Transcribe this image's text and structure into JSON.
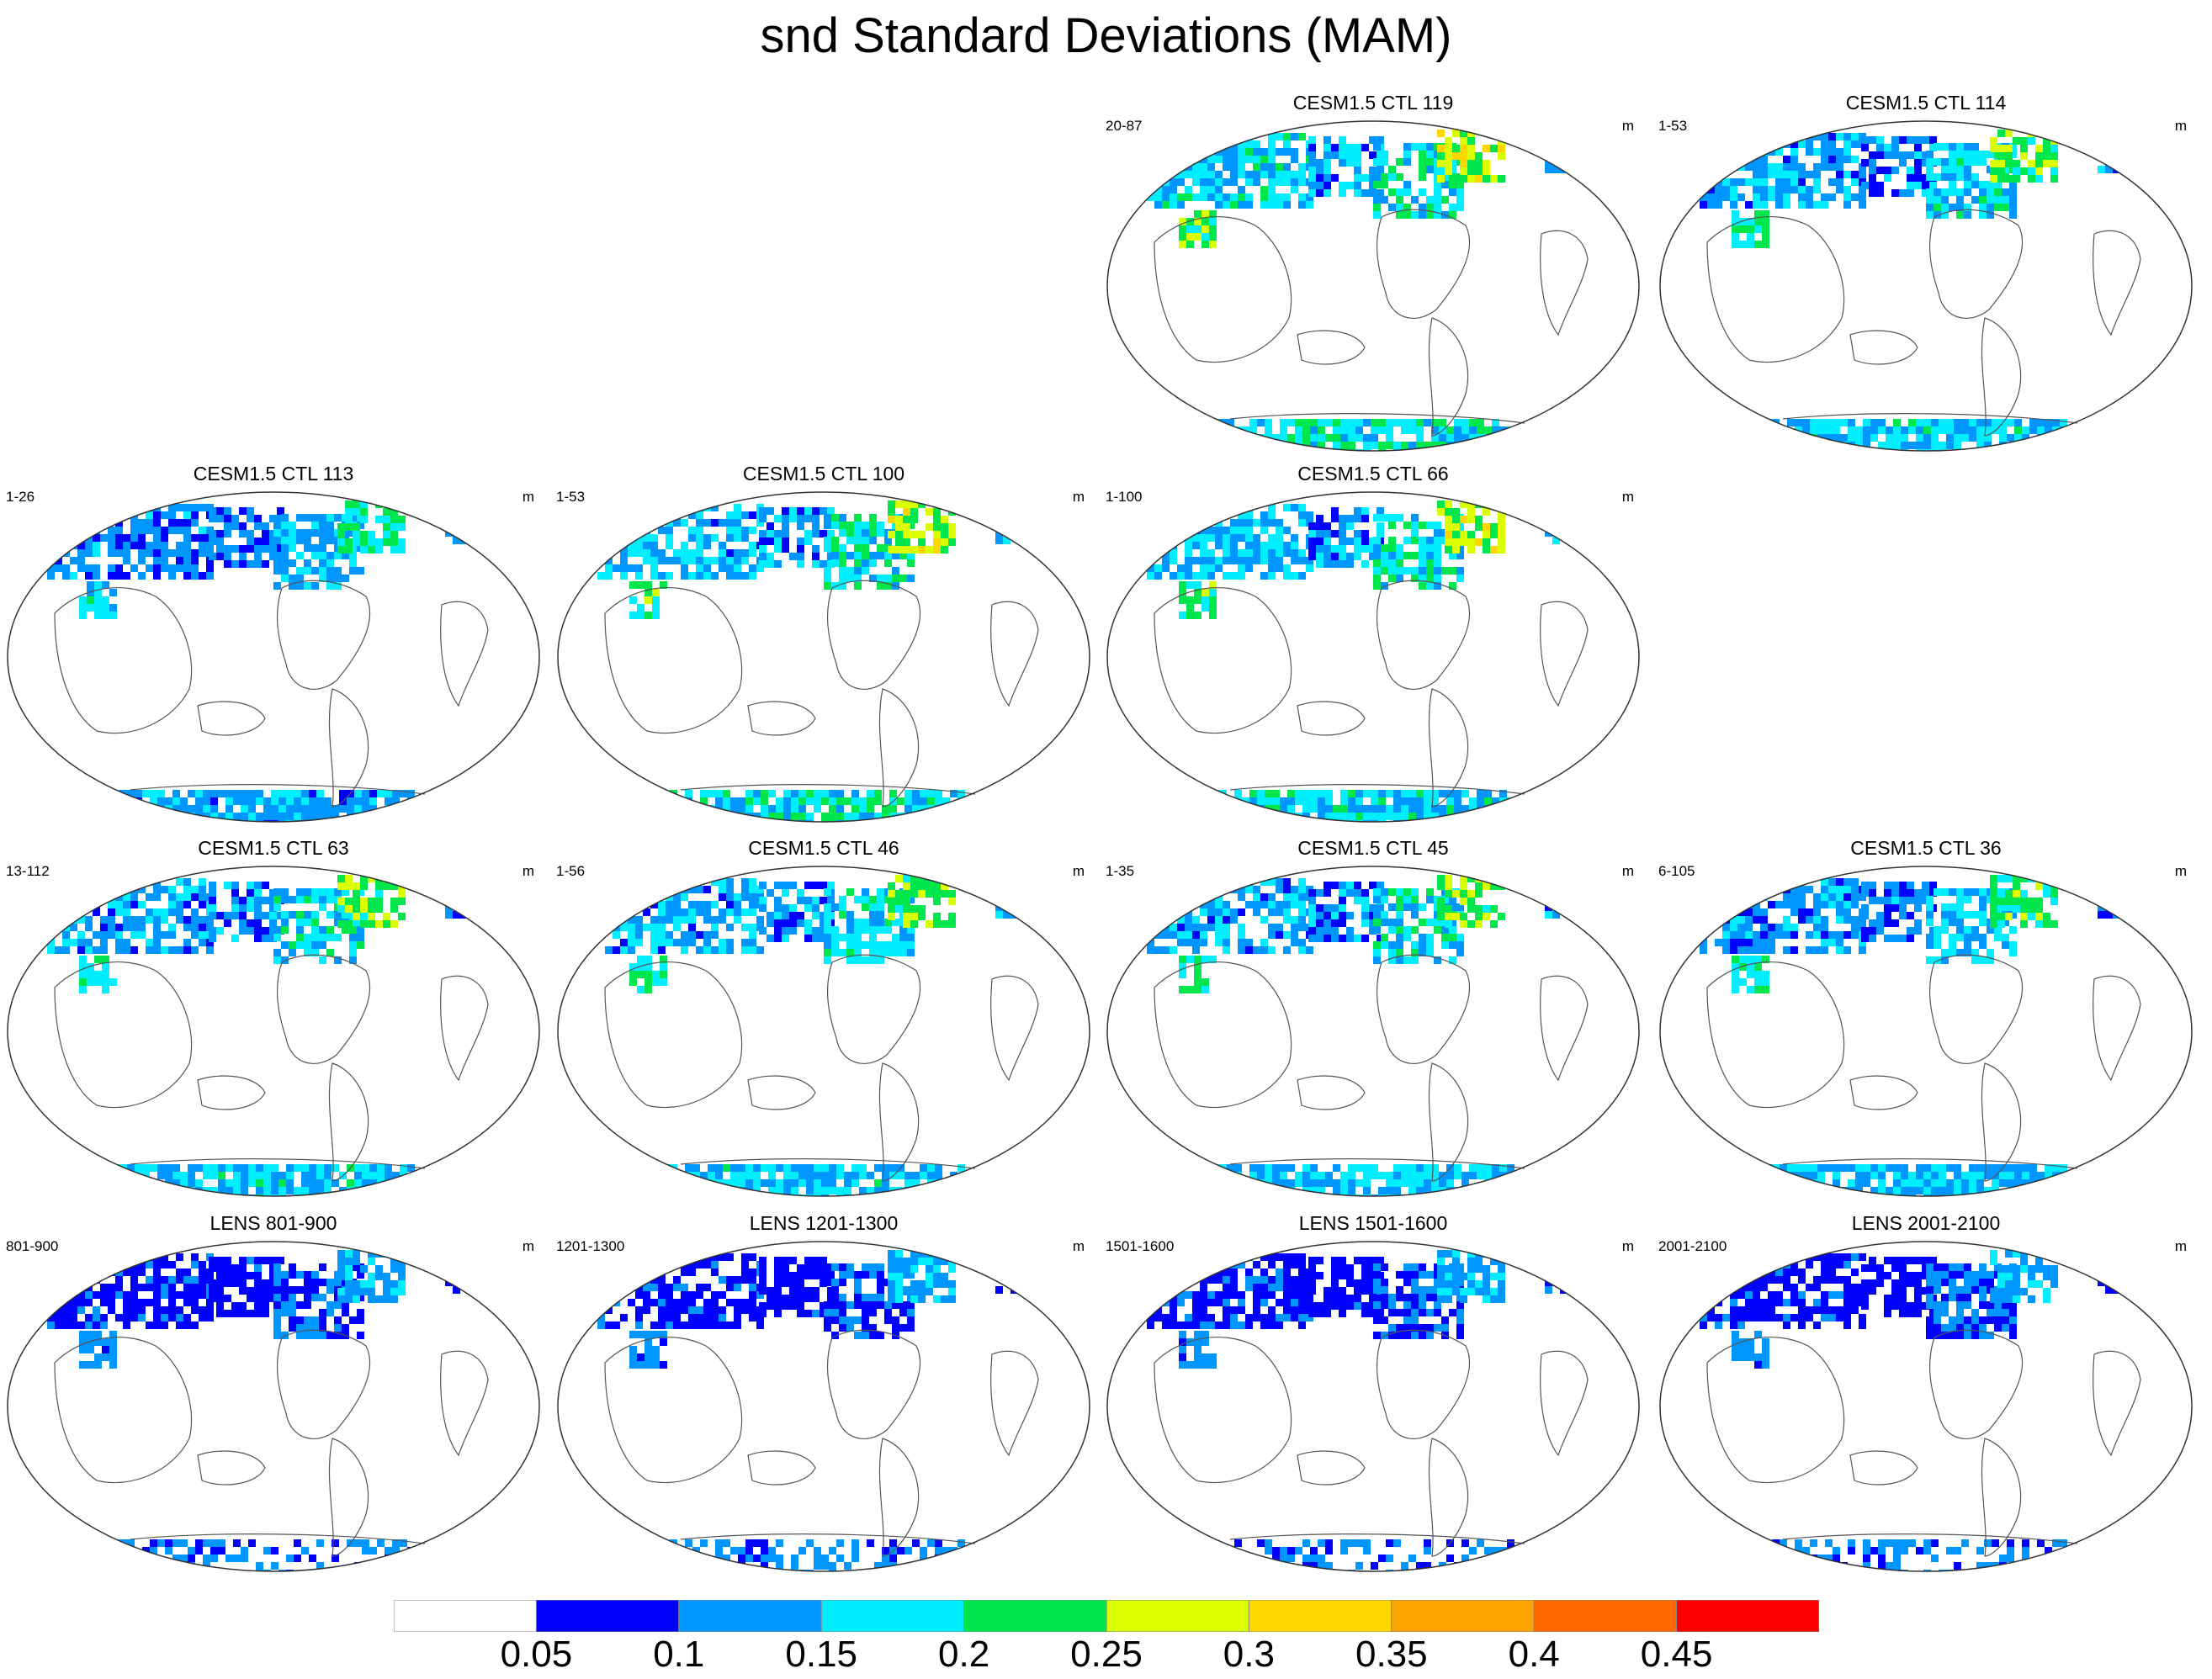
{
  "title": "snd Standard Deviations (MAM)",
  "units": "m",
  "panels": [
    {
      "title": "CESM1.5 CTL 119",
      "range": "20-87",
      "units": "m",
      "intensity": 1.0
    },
    {
      "title": "CESM1.5 CTL 114",
      "range": "1-53",
      "units": "m",
      "intensity": 0.85
    },
    {
      "title": "CESM1.5 CTL 113",
      "range": "1-26",
      "units": "m",
      "intensity": 0.7
    },
    {
      "title": "CESM1.5 CTL 100",
      "range": "1-53",
      "units": "m",
      "intensity": 0.95
    },
    {
      "title": "CESM1.5 CTL 66",
      "range": "1-100",
      "units": "m",
      "intensity": 0.95
    },
    {
      "title": "CESM1.5 CTL 63",
      "range": "13-112",
      "units": "m",
      "intensity": 0.85
    },
    {
      "title": "CESM1.5 CTL 46",
      "range": "1-56",
      "units": "m",
      "intensity": 0.85
    },
    {
      "title": "CESM1.5 CTL 45",
      "range": "1-35",
      "units": "m",
      "intensity": 0.85
    },
    {
      "title": "CESM1.5 CTL 36",
      "range": "6-105",
      "units": "m",
      "intensity": 0.75
    },
    {
      "title": "LENS 801-900",
      "range": "801-900",
      "units": "m",
      "intensity": 0.45
    },
    {
      "title": "LENS 1201-1300",
      "range": "1201-1300",
      "units": "m",
      "intensity": 0.45
    },
    {
      "title": "LENS 1501-1600",
      "range": "1501-1600",
      "units": "m",
      "intensity": 0.45
    },
    {
      "title": "LENS 2001-2100",
      "range": "2001-2100",
      "units": "m",
      "intensity": 0.45
    }
  ],
  "colorbar": {
    "colors": [
      "#ffffff",
      "#0000ff",
      "#0096ff",
      "#00eeff",
      "#00e64d",
      "#d9ff00",
      "#ffd700",
      "#ffa500",
      "#ff6a00",
      "#ff0000"
    ],
    "labels": [
      "0.05",
      "0.1",
      "0.15",
      "0.2",
      "0.25",
      "0.3",
      "0.35",
      "0.4",
      "0.45"
    ]
  },
  "chart_data": {
    "type": "heatmap",
    "title": "snd Standard Deviations (MAM)",
    "variable": "snd",
    "season": "MAM",
    "units": "m",
    "levels": [
      0.05,
      0.1,
      0.15,
      0.2,
      0.25,
      0.3,
      0.35,
      0.4,
      0.45
    ],
    "panels": [
      "CESM1.5 CTL 119",
      "CESM1.5 CTL 114",
      "CESM1.5 CTL 113",
      "CESM1.5 CTL 100",
      "CESM1.5 CTL 66",
      "CESM1.5 CTL 63",
      "CESM1.5 CTL 46",
      "CESM1.5 CTL 45",
      "CESM1.5 CTL 36",
      "LENS 801-900",
      "LENS 1201-1300",
      "LENS 1501-1600",
      "LENS 2001-2100"
    ]
  }
}
